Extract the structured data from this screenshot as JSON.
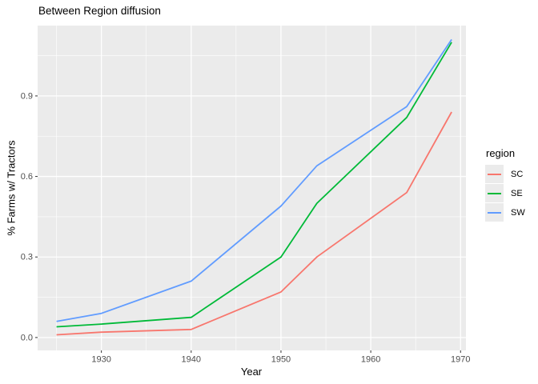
{
  "title": "Between Region diffusion",
  "colors": {
    "background": "#FFFFFF",
    "panel": "#EBEBEB",
    "grid_major": "#FFFFFF",
    "grid_minor": "#F5F5F5",
    "tick_mark": "#333333",
    "tick_label": "#4D4D4D",
    "text": "#000000",
    "legend_key": "#EBEBEB"
  },
  "axes": {
    "x_title": "Year",
    "y_title": "% Farms w/ Tractors"
  },
  "legend": {
    "title": "region",
    "items": [
      {
        "label": "SC",
        "color": "#F8766D"
      },
      {
        "label": "SE",
        "color": "#00BA38"
      },
      {
        "label": "SW",
        "color": "#619CFF"
      }
    ]
  },
  "chart_data": {
    "type": "line",
    "title": "Between Region diffusion",
    "xlabel": "Year",
    "ylabel": "% Farms w/ Tractors",
    "x": [
      1925,
      1930,
      1940,
      1950,
      1954,
      1964,
      1969
    ],
    "series": [
      {
        "name": "SC",
        "color": "#F8766D",
        "values": [
          0.01,
          0.02,
          0.03,
          0.17,
          0.3,
          0.54,
          0.84
        ]
      },
      {
        "name": "SE",
        "color": "#00BA38",
        "values": [
          0.04,
          0.05,
          0.075,
          0.3,
          0.5,
          0.82,
          1.1
        ]
      },
      {
        "name": "SW",
        "color": "#619CFF",
        "values": [
          0.06,
          0.09,
          0.21,
          0.49,
          0.64,
          0.86,
          1.11
        ]
      }
    ],
    "xlim": [
      1922.9,
      1970.6
    ],
    "ylim": [
      -0.048,
      1.162
    ],
    "x_ticks": [
      1930,
      1940,
      1950,
      1960,
      1970
    ],
    "x_tick_labels": [
      "1930",
      "1940",
      "1950",
      "1960",
      "1970"
    ],
    "x_minor": [
      1925,
      1935,
      1945,
      1955,
      1965
    ],
    "y_ticks": [
      0,
      0.3,
      0.6,
      0.9
    ],
    "y_tick_labels": [
      "0.0",
      "0.3",
      "0.6",
      "0.9"
    ],
    "y_minor": [
      0.15,
      0.45,
      0.75,
      1.05
    ],
    "grid": true,
    "legend_position": "right",
    "legend_title": "region"
  }
}
